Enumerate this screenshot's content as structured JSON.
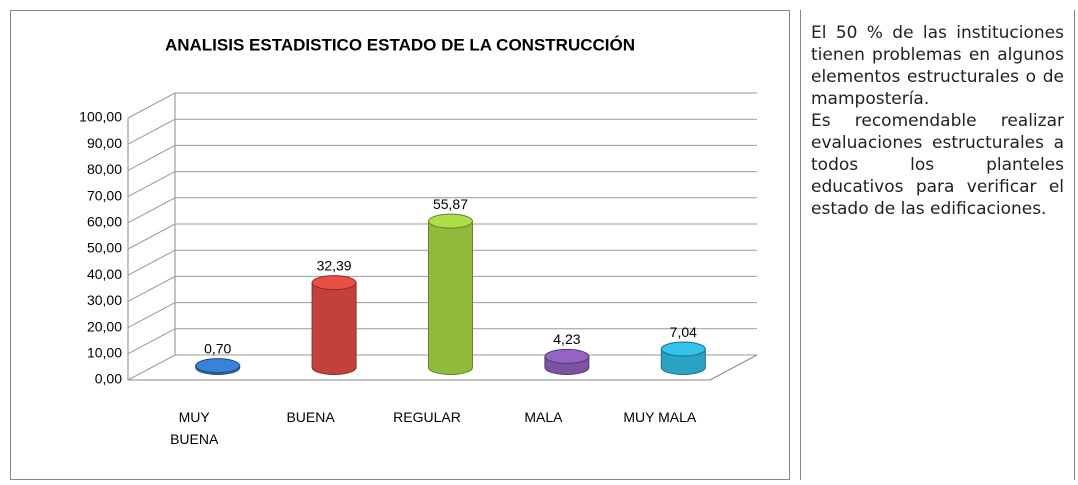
{
  "chart_data": {
    "type": "bar",
    "title": "ANALISIS ESTADISTICO ESTADO DE LA CONSTRUCCIÓN",
    "categories": [
      "MUY BUENA",
      "BUENA",
      "REGULAR",
      "MALA",
      "MUY MALA"
    ],
    "values": [
      0.7,
      32.39,
      55.87,
      4.23,
      7.04
    ],
    "value_labels": [
      "0,70",
      "32,39",
      "55,87",
      "4,23",
      "7,04"
    ],
    "colors": [
      "#2f6db5",
      "#c2413b",
      "#8fba3a",
      "#7b53a3",
      "#2aa2c4"
    ],
    "ylim": [
      0,
      100
    ],
    "yticks": [
      {
        "value": 0,
        "label": "0,00"
      },
      {
        "value": 10,
        "label": "10,00"
      },
      {
        "value": 20,
        "label": "20,00"
      },
      {
        "value": 30,
        "label": "30,00"
      },
      {
        "value": 40,
        "label": "40,00"
      },
      {
        "value": 50,
        "label": "50,00"
      },
      {
        "value": 60,
        "label": "60,00"
      },
      {
        "value": 70,
        "label": "70,00"
      },
      {
        "value": 80,
        "label": "80,00"
      },
      {
        "value": 90,
        "label": "90,00"
      },
      {
        "value": 100,
        "label": "100,00"
      }
    ],
    "grid": true
  },
  "text_box": {
    "paragraphs": [
      "El 50 % de las instituciones tienen problemas en algunos elementos estructurales o de mampostería.",
      "Es recomendable realizar evaluaciones estructurales a todos los planteles educativos para verificar el estado de las edificaciones."
    ]
  }
}
